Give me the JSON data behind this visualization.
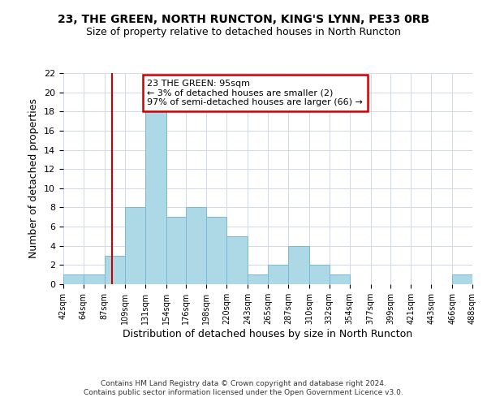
{
  "title": "23, THE GREEN, NORTH RUNCTON, KING'S LYNN, PE33 0RB",
  "subtitle": "Size of property relative to detached houses in North Runcton",
  "xlabel": "Distribution of detached houses by size in North Runcton",
  "ylabel": "Number of detached properties",
  "bin_edges": [
    42,
    64,
    87,
    109,
    131,
    154,
    176,
    198,
    220,
    243,
    265,
    287,
    310,
    332,
    354,
    377,
    399,
    421,
    443,
    466,
    488
  ],
  "bin_counts": [
    1,
    1,
    3,
    8,
    18,
    7,
    8,
    7,
    5,
    1,
    2,
    4,
    2,
    1,
    0,
    0,
    0,
    0,
    0,
    1
  ],
  "bar_color": "#add8e6",
  "bar_edge_color": "#7bb8d4",
  "property_line_x": 95,
  "property_line_color": "#cc0000",
  "annotation_title": "23 THE GREEN: 95sqm",
  "annotation_line1": "← 3% of detached houses are smaller (2)",
  "annotation_line2": "97% of semi-detached houses are larger (66) →",
  "annotation_box_color": "#ffffff",
  "annotation_box_edge": "#cc0000",
  "tick_labels": [
    "42sqm",
    "64sqm",
    "87sqm",
    "109sqm",
    "131sqm",
    "154sqm",
    "176sqm",
    "198sqm",
    "220sqm",
    "243sqm",
    "265sqm",
    "287sqm",
    "310sqm",
    "332sqm",
    "354sqm",
    "377sqm",
    "399sqm",
    "421sqm",
    "443sqm",
    "466sqm",
    "488sqm"
  ],
  "ylim": [
    0,
    22
  ],
  "yticks": [
    0,
    2,
    4,
    6,
    8,
    10,
    12,
    14,
    16,
    18,
    20,
    22
  ],
  "footer1": "Contains HM Land Registry data © Crown copyright and database right 2024.",
  "footer2": "Contains public sector information licensed under the Open Government Licence v3.0.",
  "background_color": "#ffffff",
  "grid_color": "#d0d8f0"
}
